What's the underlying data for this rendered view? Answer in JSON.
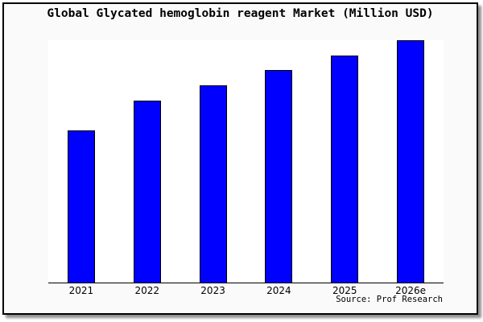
{
  "chart": {
    "title": "Global Glycated hemoglobin reagent Market (Million USD)",
    "source": "Source: Prof Research"
  },
  "chart_data": {
    "type": "bar",
    "title": "Global Glycated hemoglobin reagent Market (Million USD)",
    "categories": [
      "2021",
      "2022",
      "2023",
      "2024",
      "2025",
      "2026e"
    ],
    "values": [
      189,
      226,
      245,
      264,
      282,
      301
    ],
    "values_normalized": [
      0.628,
      0.751,
      0.814,
      0.877,
      0.937,
      1.0
    ],
    "values_note": "no y-axis scale or data labels shown in chart; values are relative bar heights",
    "xlabel": "",
    "ylabel": "",
    "legend_position": "none",
    "grid": false,
    "y_axis_ticks_visible": false,
    "source": "Source: Prof Research",
    "bar_color": "#0000ff",
    "bar_border_color": "#000000",
    "plot_background": "#ffffff",
    "figure_background": "#fafafa",
    "frame_border_color": "#000000"
  }
}
